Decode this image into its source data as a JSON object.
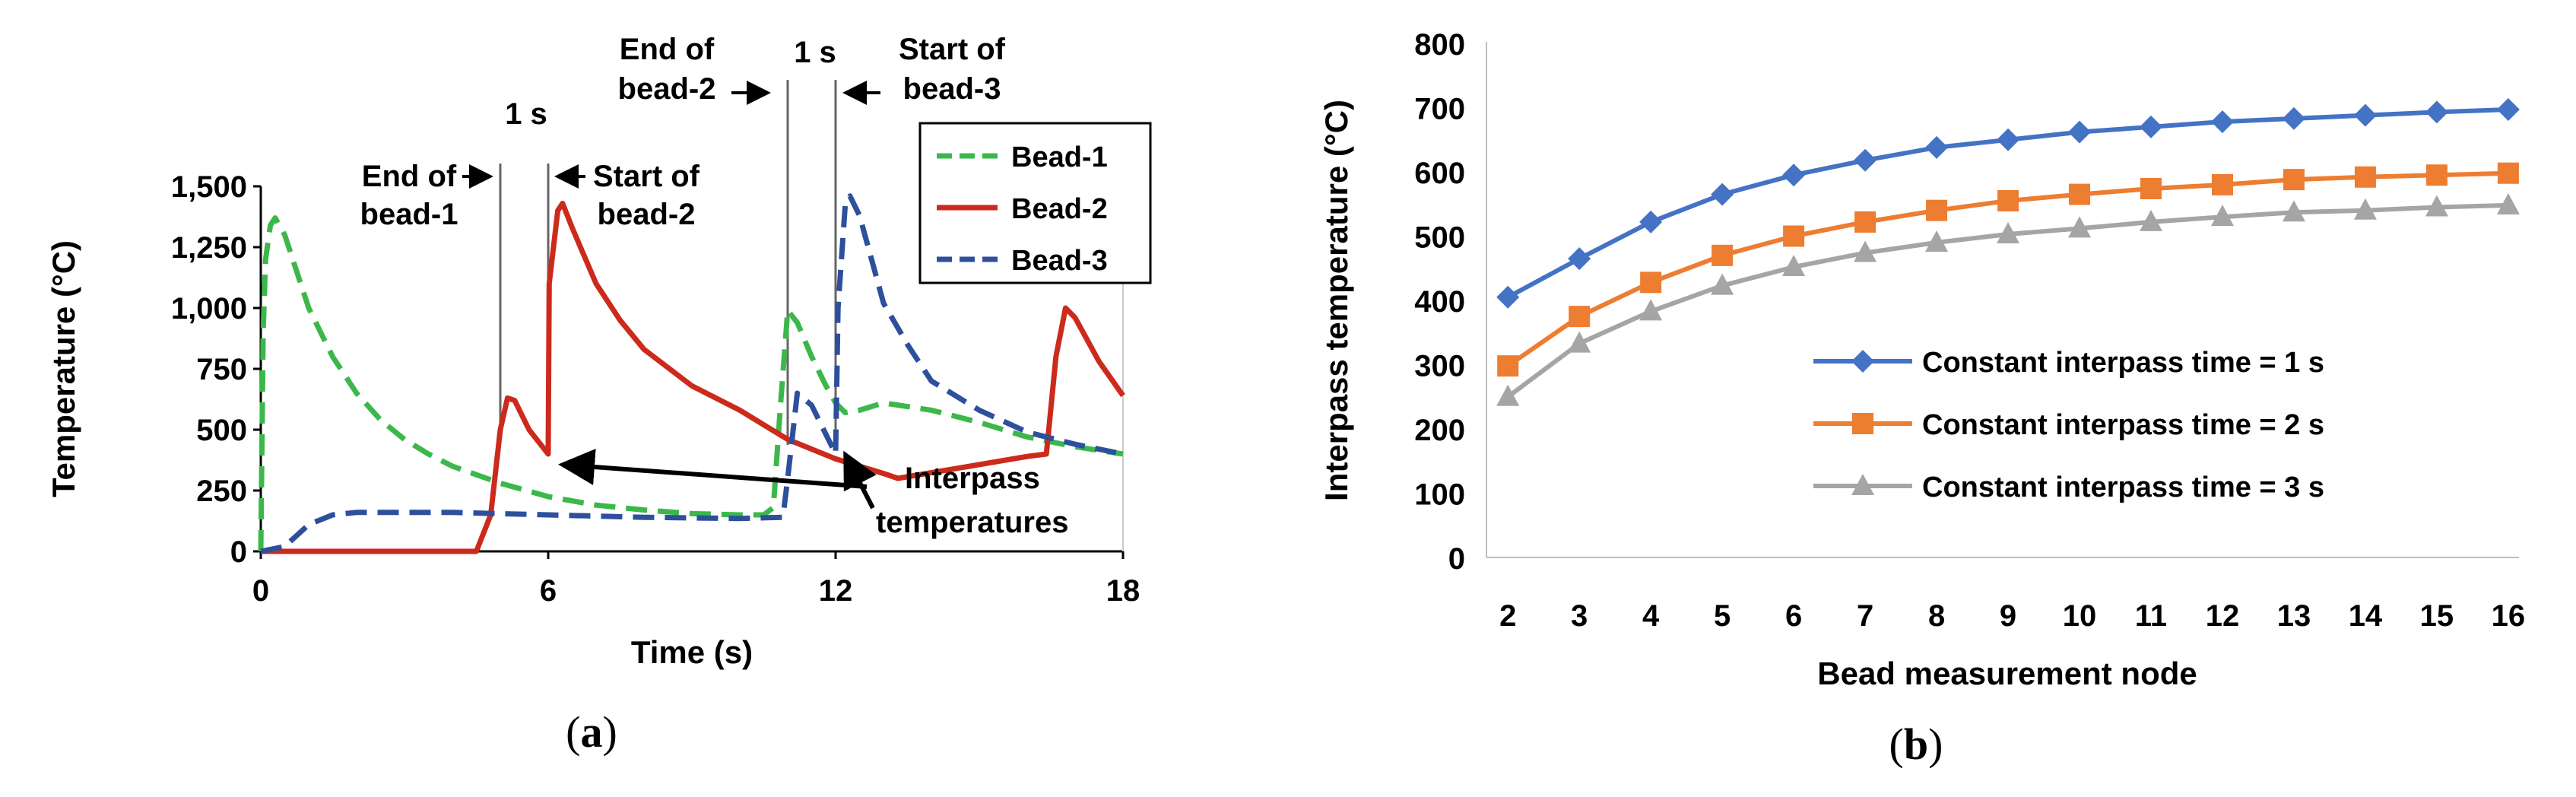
{
  "chart_data": [
    {
      "type": "line",
      "panel_label": "(a)",
      "panel_letter": "a",
      "xlabel": "Time (s)",
      "ylabel": "Temperature (°C)",
      "xlim": [
        0,
        18
      ],
      "ylim": [
        0,
        1500
      ],
      "xticks": [
        0,
        6,
        12,
        18
      ],
      "yticks": [
        0,
        250,
        500,
        750,
        1000,
        1250,
        1500
      ],
      "ytick_labels": [
        "0",
        "250",
        "500",
        "750",
        "1,000",
        "1,250",
        "1,500"
      ],
      "legend_position": "top-right",
      "series": [
        {
          "name": "Bead-1",
          "color": "#3cb84a",
          "dash": "dashed",
          "points": [
            [
              0,
              0
            ],
            [
              0.05,
              900
            ],
            [
              0.1,
              1200
            ],
            [
              0.2,
              1340
            ],
            [
              0.3,
              1370
            ],
            [
              0.5,
              1300
            ],
            [
              1,
              1000
            ],
            [
              1.5,
              800
            ],
            [
              2,
              650
            ],
            [
              2.5,
              540
            ],
            [
              3,
              460
            ],
            [
              3.5,
              400
            ],
            [
              4,
              350
            ],
            [
              5,
              280
            ],
            [
              6,
              225
            ],
            [
              7,
              190
            ],
            [
              8,
              170
            ],
            [
              9,
              155
            ],
            [
              10,
              150
            ],
            [
              10.5,
              150
            ],
            [
              10.7,
              180
            ],
            [
              10.85,
              600
            ],
            [
              11,
              990
            ],
            [
              11.2,
              940
            ],
            [
              11.5,
              800
            ],
            [
              11.8,
              680
            ],
            [
              12,
              610
            ],
            [
              12.2,
              570
            ],
            [
              12.5,
              580
            ],
            [
              13,
              610
            ],
            [
              14,
              580
            ],
            [
              15,
              530
            ],
            [
              16,
              470
            ],
            [
              17,
              430
            ],
            [
              18,
              400
            ]
          ]
        },
        {
          "name": "Bead-2",
          "color": "#cc2a1c",
          "dash": "solid",
          "points": [
            [
              0,
              0
            ],
            [
              4.5,
              0
            ],
            [
              4.8,
              150
            ],
            [
              5,
              500
            ],
            [
              5.15,
              630
            ],
            [
              5.3,
              620
            ],
            [
              5.6,
              500
            ],
            [
              6,
              400
            ],
            [
              6.02,
              1100
            ],
            [
              6.2,
              1400
            ],
            [
              6.3,
              1430
            ],
            [
              6.5,
              1330
            ],
            [
              7,
              1100
            ],
            [
              7.5,
              950
            ],
            [
              8,
              830
            ],
            [
              9,
              680
            ],
            [
              10,
              580
            ],
            [
              11,
              460
            ],
            [
              12,
              380
            ],
            [
              13,
              320
            ],
            [
              13.3,
              300
            ],
            [
              16,
              390
            ],
            [
              16.4,
              400
            ],
            [
              16.6,
              800
            ],
            [
              16.8,
              1000
            ],
            [
              17,
              960
            ],
            [
              17.5,
              780
            ],
            [
              18,
              640
            ]
          ]
        },
        {
          "name": "Bead-3",
          "color": "#2d4f9c",
          "dash": "dashed",
          "points": [
            [
              0,
              0
            ],
            [
              0.5,
              20
            ],
            [
              1,
              110
            ],
            [
              1.5,
              150
            ],
            [
              2,
              160
            ],
            [
              4,
              160
            ],
            [
              6,
              150
            ],
            [
              8,
              140
            ],
            [
              10,
              135
            ],
            [
              10.9,
              140
            ],
            [
              11,
              300
            ],
            [
              11.2,
              650
            ],
            [
              11.5,
              600
            ],
            [
              11.8,
              480
            ],
            [
              12,
              400
            ],
            [
              12.05,
              1000
            ],
            [
              12.2,
              1420
            ],
            [
              12.3,
              1460
            ],
            [
              12.5,
              1380
            ],
            [
              13,
              1020
            ],
            [
              13.5,
              850
            ],
            [
              14,
              700
            ],
            [
              15,
              580
            ],
            [
              16,
              490
            ],
            [
              17,
              440
            ],
            [
              18,
              400
            ]
          ]
        }
      ],
      "guide_lines_x": [
        5,
        6,
        11,
        12
      ],
      "annotations": {
        "one_s_left": "1 s",
        "end_bead1": [
          "End of",
          "bead-1"
        ],
        "start_bead2": [
          "Start of",
          "bead-2"
        ],
        "end_bead2": [
          "End of",
          "bead-2"
        ],
        "one_s_right": "1 s",
        "start_bead3": [
          "Start of",
          "bead-3"
        ],
        "interpass": [
          "Interpass",
          "temperatures"
        ]
      }
    },
    {
      "type": "line",
      "panel_label": "(b)",
      "panel_letter": "b",
      "xlabel": "Bead measurement node",
      "ylabel": "Interpass temperature (°C)",
      "ylim": [
        0,
        800
      ],
      "yticks": [
        0,
        100,
        200,
        300,
        400,
        500,
        600,
        700,
        800
      ],
      "categories": [
        "2",
        "3",
        "4",
        "5",
        "6",
        "7",
        "8",
        "9",
        "10",
        "11",
        "12",
        "13",
        "14",
        "15",
        "16"
      ],
      "legend_position": "center-right",
      "series": [
        {
          "name": "Constant interpass time = 1 s",
          "color": "#4472c4",
          "marker": "diamond",
          "values": [
            405,
            465,
            522,
            565,
            595,
            618,
            638,
            650,
            662,
            670,
            678,
            683,
            688,
            693,
            697
          ]
        },
        {
          "name": "Constant interpass time = 2 s",
          "color": "#ed7d31",
          "marker": "square",
          "values": [
            298,
            375,
            428,
            470,
            500,
            522,
            540,
            555,
            565,
            574,
            580,
            588,
            592,
            595,
            598
          ]
        },
        {
          "name": "Constant interpass time = 3 s",
          "color": "#a5a5a5",
          "marker": "triangle",
          "values": [
            250,
            333,
            383,
            423,
            452,
            474,
            490,
            503,
            512,
            522,
            530,
            537,
            540,
            545,
            548
          ]
        }
      ]
    }
  ]
}
